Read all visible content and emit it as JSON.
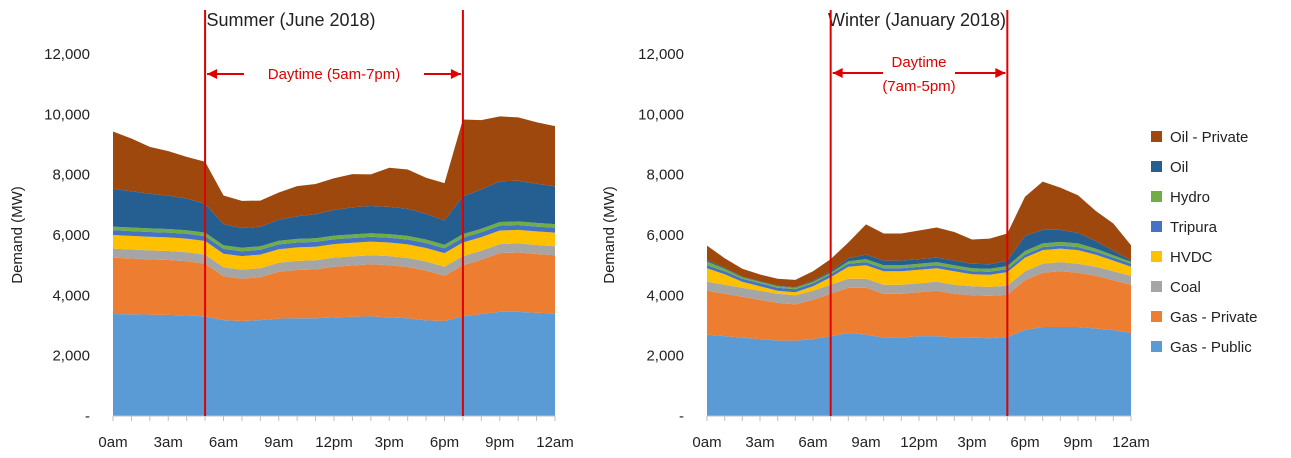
{
  "chart_data": [
    {
      "type": "area",
      "title": "Summer (June 2018)",
      "ylabel": "Demand (MW)",
      "ylim": [
        0,
        12000
      ],
      "yticks": [
        0,
        2000,
        4000,
        6000,
        8000,
        10000,
        12000
      ],
      "ytick_labels": [
        "-",
        "2,000",
        "4,000",
        "6,000",
        "8,000",
        "10,000",
        "12,000"
      ],
      "x": [
        0,
        1,
        2,
        3,
        4,
        5,
        6,
        7,
        8,
        9,
        10,
        11,
        12,
        13,
        14,
        15,
        16,
        17,
        18,
        19,
        20,
        21,
        22,
        23,
        24
      ],
      "xticks": [
        0,
        3,
        6,
        9,
        12,
        15,
        18,
        21,
        24
      ],
      "xtick_labels": [
        "0am",
        "3am",
        "6am",
        "9am",
        "12pm",
        "3pm",
        "6pm",
        "9pm",
        "12am"
      ],
      "series": [
        {
          "name": "Gas - Public",
          "color": "#5b9bd5",
          "values": [
            3380,
            3370,
            3360,
            3350,
            3330,
            3300,
            3180,
            3150,
            3180,
            3230,
            3240,
            3240,
            3270,
            3290,
            3300,
            3270,
            3240,
            3170,
            3150,
            3300,
            3380,
            3450,
            3450,
            3420,
            3400
          ]
        },
        {
          "name": "Gas - Private",
          "color": "#ed7d31",
          "values": [
            1870,
            1850,
            1830,
            1820,
            1800,
            1750,
            1450,
            1400,
            1420,
            1550,
            1600,
            1620,
            1680,
            1700,
            1730,
            1730,
            1700,
            1650,
            1500,
            1700,
            1800,
            1950,
            1970,
            1950,
            1930
          ]
        },
        {
          "name": "Coal",
          "color": "#a5a5a5",
          "values": [
            300,
            300,
            300,
            300,
            300,
            300,
            300,
            300,
            300,
            300,
            300,
            300,
            300,
            300,
            300,
            300,
            300,
            300,
            300,
            300,
            300,
            300,
            300,
            300,
            300
          ]
        },
        {
          "name": "HVDC",
          "color": "#ffc000",
          "values": [
            450,
            450,
            450,
            450,
            450,
            450,
            450,
            450,
            450,
            450,
            450,
            450,
            450,
            450,
            450,
            450,
            450,
            450,
            450,
            450,
            450,
            450,
            450,
            450,
            450
          ]
        },
        {
          "name": "Tripura",
          "color": "#4472c4",
          "values": [
            160,
            160,
            160,
            160,
            160,
            160,
            160,
            160,
            160,
            160,
            160,
            160,
            160,
            160,
            160,
            160,
            160,
            160,
            160,
            160,
            160,
            160,
            160,
            160,
            160
          ]
        },
        {
          "name": "Hydro",
          "color": "#70ad47",
          "values": [
            120,
            120,
            120,
            120,
            120,
            120,
            120,
            120,
            120,
            120,
            120,
            120,
            120,
            120,
            120,
            120,
            120,
            120,
            120,
            120,
            120,
            120,
            120,
            120,
            120
          ]
        },
        {
          "name": "Oil",
          "color": "#255e91",
          "values": [
            1250,
            1200,
            1150,
            1100,
            1050,
            950,
            700,
            650,
            650,
            700,
            750,
            800,
            850,
            900,
            900,
            900,
            900,
            850,
            800,
            1250,
            1300,
            1350,
            1350,
            1300,
            1250
          ]
        },
        {
          "name": "Oil - Private",
          "color": "#9e480e",
          "values": [
            1900,
            1750,
            1550,
            1480,
            1380,
            1400,
            950,
            900,
            860,
            900,
            1000,
            1000,
            1050,
            1100,
            1050,
            1300,
            1300,
            1200,
            1240,
            2550,
            2300,
            2150,
            2100,
            2040,
            2000
          ]
        }
      ],
      "daytime_start": 5,
      "daytime_end": 19,
      "annotation": "Daytime (5am-7pm)"
    },
    {
      "type": "area",
      "title": "Winter (January 2018)",
      "ylabel": "Demand (MW)",
      "ylim": [
        0,
        12000
      ],
      "yticks": [
        0,
        2000,
        4000,
        6000,
        8000,
        10000,
        12000
      ],
      "ytick_labels": [
        "-",
        "2,000",
        "4,000",
        "6,000",
        "8,000",
        "10,000",
        "12,000"
      ],
      "x": [
        0,
        1,
        2,
        3,
        4,
        5,
        6,
        7,
        8,
        9,
        10,
        11,
        12,
        13,
        14,
        15,
        16,
        17,
        18,
        19,
        20,
        21,
        22,
        23,
        24
      ],
      "xticks": [
        0,
        3,
        6,
        9,
        12,
        15,
        18,
        21,
        24
      ],
      "xtick_labels": [
        "0am",
        "3am",
        "6am",
        "9am",
        "12pm",
        "3pm",
        "6pm",
        "9pm",
        "12am"
      ],
      "series": [
        {
          "name": "Gas - Public",
          "color": "#5b9bd5",
          "values": [
            2700,
            2650,
            2600,
            2550,
            2500,
            2500,
            2550,
            2650,
            2750,
            2700,
            2600,
            2600,
            2650,
            2650,
            2600,
            2600,
            2580,
            2620,
            2850,
            2950,
            2950,
            2950,
            2900,
            2850,
            2750
          ]
        },
        {
          "name": "Gas - Private",
          "color": "#ed7d31",
          "values": [
            1450,
            1400,
            1350,
            1300,
            1250,
            1200,
            1300,
            1400,
            1500,
            1550,
            1450,
            1450,
            1450,
            1500,
            1450,
            1400,
            1400,
            1400,
            1650,
            1800,
            1850,
            1800,
            1750,
            1650,
            1600
          ]
        },
        {
          "name": "Coal",
          "color": "#a5a5a5",
          "values": [
            300,
            300,
            300,
            300,
            300,
            300,
            300,
            300,
            300,
            300,
            300,
            300,
            300,
            300,
            300,
            300,
            300,
            300,
            300,
            300,
            300,
            300,
            300,
            300,
            300
          ]
        },
        {
          "name": "HVDC",
          "color": "#ffc000",
          "values": [
            450,
            350,
            200,
            150,
            100,
            100,
            150,
            250,
            400,
            450,
            450,
            450,
            450,
            450,
            450,
            400,
            400,
            450,
            450,
            450,
            450,
            450,
            400,
            350,
            300
          ]
        },
        {
          "name": "Tripura",
          "color": "#4472c4",
          "values": [
            100,
            100,
            100,
            100,
            100,
            100,
            100,
            100,
            100,
            100,
            100,
            100,
            100,
            100,
            100,
            100,
            100,
            100,
            100,
            100,
            100,
            100,
            100,
            100,
            100
          ]
        },
        {
          "name": "Hydro",
          "color": "#70ad47",
          "values": [
            120,
            80,
            50,
            50,
            50,
            50,
            50,
            50,
            80,
            100,
            100,
            100,
            100,
            100,
            100,
            100,
            100,
            100,
            120,
            120,
            120,
            120,
            100,
            80,
            60
          ]
        },
        {
          "name": "Oil",
          "color": "#255e91",
          "values": [
            50,
            30,
            20,
            20,
            20,
            20,
            30,
            50,
            100,
            150,
            150,
            150,
            150,
            150,
            150,
            150,
            150,
            180,
            500,
            450,
            400,
            350,
            250,
            150,
            50
          ]
        },
        {
          "name": "Oil - Private",
          "color": "#9e480e",
          "values": [
            480,
            320,
            260,
            220,
            230,
            240,
            320,
            400,
            520,
            1000,
            900,
            900,
            950,
            1000,
            950,
            800,
            850,
            900,
            1300,
            1600,
            1400,
            1250,
            1000,
            900,
            500
          ]
        }
      ],
      "daytime_start": 7,
      "daytime_end": 17,
      "annotation": [
        "Daytime",
        "(7am-5pm)"
      ]
    }
  ],
  "legend": {
    "items": [
      {
        "label": "Oil - Private",
        "color": "#9e480e"
      },
      {
        "label": "Oil",
        "color": "#255e91"
      },
      {
        "label": "Hydro",
        "color": "#70ad47"
      },
      {
        "label": "Tripura",
        "color": "#4472c4"
      },
      {
        "label": "HVDC",
        "color": "#ffc000"
      },
      {
        "label": "Coal",
        "color": "#a5a5a5"
      },
      {
        "label": "Gas - Private",
        "color": "#ed7d31"
      },
      {
        "label": "Gas - Public",
        "color": "#5b9bd5"
      }
    ]
  },
  "marker_color": "#e00000"
}
